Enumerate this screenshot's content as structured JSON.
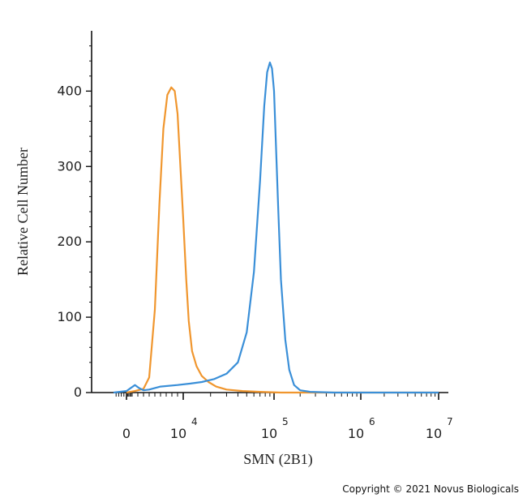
{
  "chart_data": {
    "type": "line",
    "ylabel": "Relative Cell Number",
    "xlabel": "SMN (2B1)",
    "ylim": [
      0,
      480
    ],
    "xscale": "biexponential",
    "yticks": [
      0,
      100,
      200,
      300,
      400
    ],
    "ytick_labels": [
      "0",
      "100",
      "200",
      "300",
      "400"
    ],
    "xticks": [
      {
        "value": 0,
        "label": "0",
        "sup": ""
      },
      {
        "value": 10000,
        "label": "10",
        "sup": "4"
      },
      {
        "value": 100000,
        "label": "10",
        "sup": "5"
      },
      {
        "value": 1000000,
        "label": "10",
        "sup": "6"
      },
      {
        "value": 10000000,
        "label": "10",
        "sup": "7"
      }
    ],
    "series": [
      {
        "color": "#f0962e",
        "x": [
          0,
          1500,
          3000,
          4000,
          5000,
          5800,
          6500,
          7200,
          7900,
          8500,
          9000,
          9500,
          10000,
          10800,
          11500,
          12500,
          14000,
          16000,
          19000,
          23000,
          30000,
          45000,
          70000,
          120000,
          300000,
          2000000,
          10000000
        ],
        "y": [
          0,
          2,
          5,
          20,
          110,
          250,
          350,
          395,
          405,
          400,
          370,
          300,
          230,
          150,
          95,
          55,
          35,
          22,
          14,
          8,
          4,
          2,
          1,
          0,
          0,
          0,
          0
        ]
      },
      {
        "color": "#3a8fd8",
        "x": [
          -1000,
          0,
          1500,
          2200,
          3000,
          4000,
          6000,
          9000,
          12000,
          16000,
          22000,
          30000,
          40000,
          50000,
          60000,
          70000,
          78000,
          84000,
          90000,
          95000,
          100000,
          105000,
          112000,
          120000,
          135000,
          150000,
          170000,
          200000,
          260000,
          500000,
          10000000
        ],
        "y": [
          0,
          2,
          10,
          6,
          3,
          4,
          8,
          10,
          12,
          14,
          18,
          25,
          40,
          80,
          160,
          280,
          380,
          425,
          438,
          430,
          400,
          330,
          240,
          150,
          70,
          30,
          10,
          3,
          1,
          0,
          0
        ]
      }
    ]
  },
  "copyright": "Copyright © 2021 Novus Biologicals"
}
